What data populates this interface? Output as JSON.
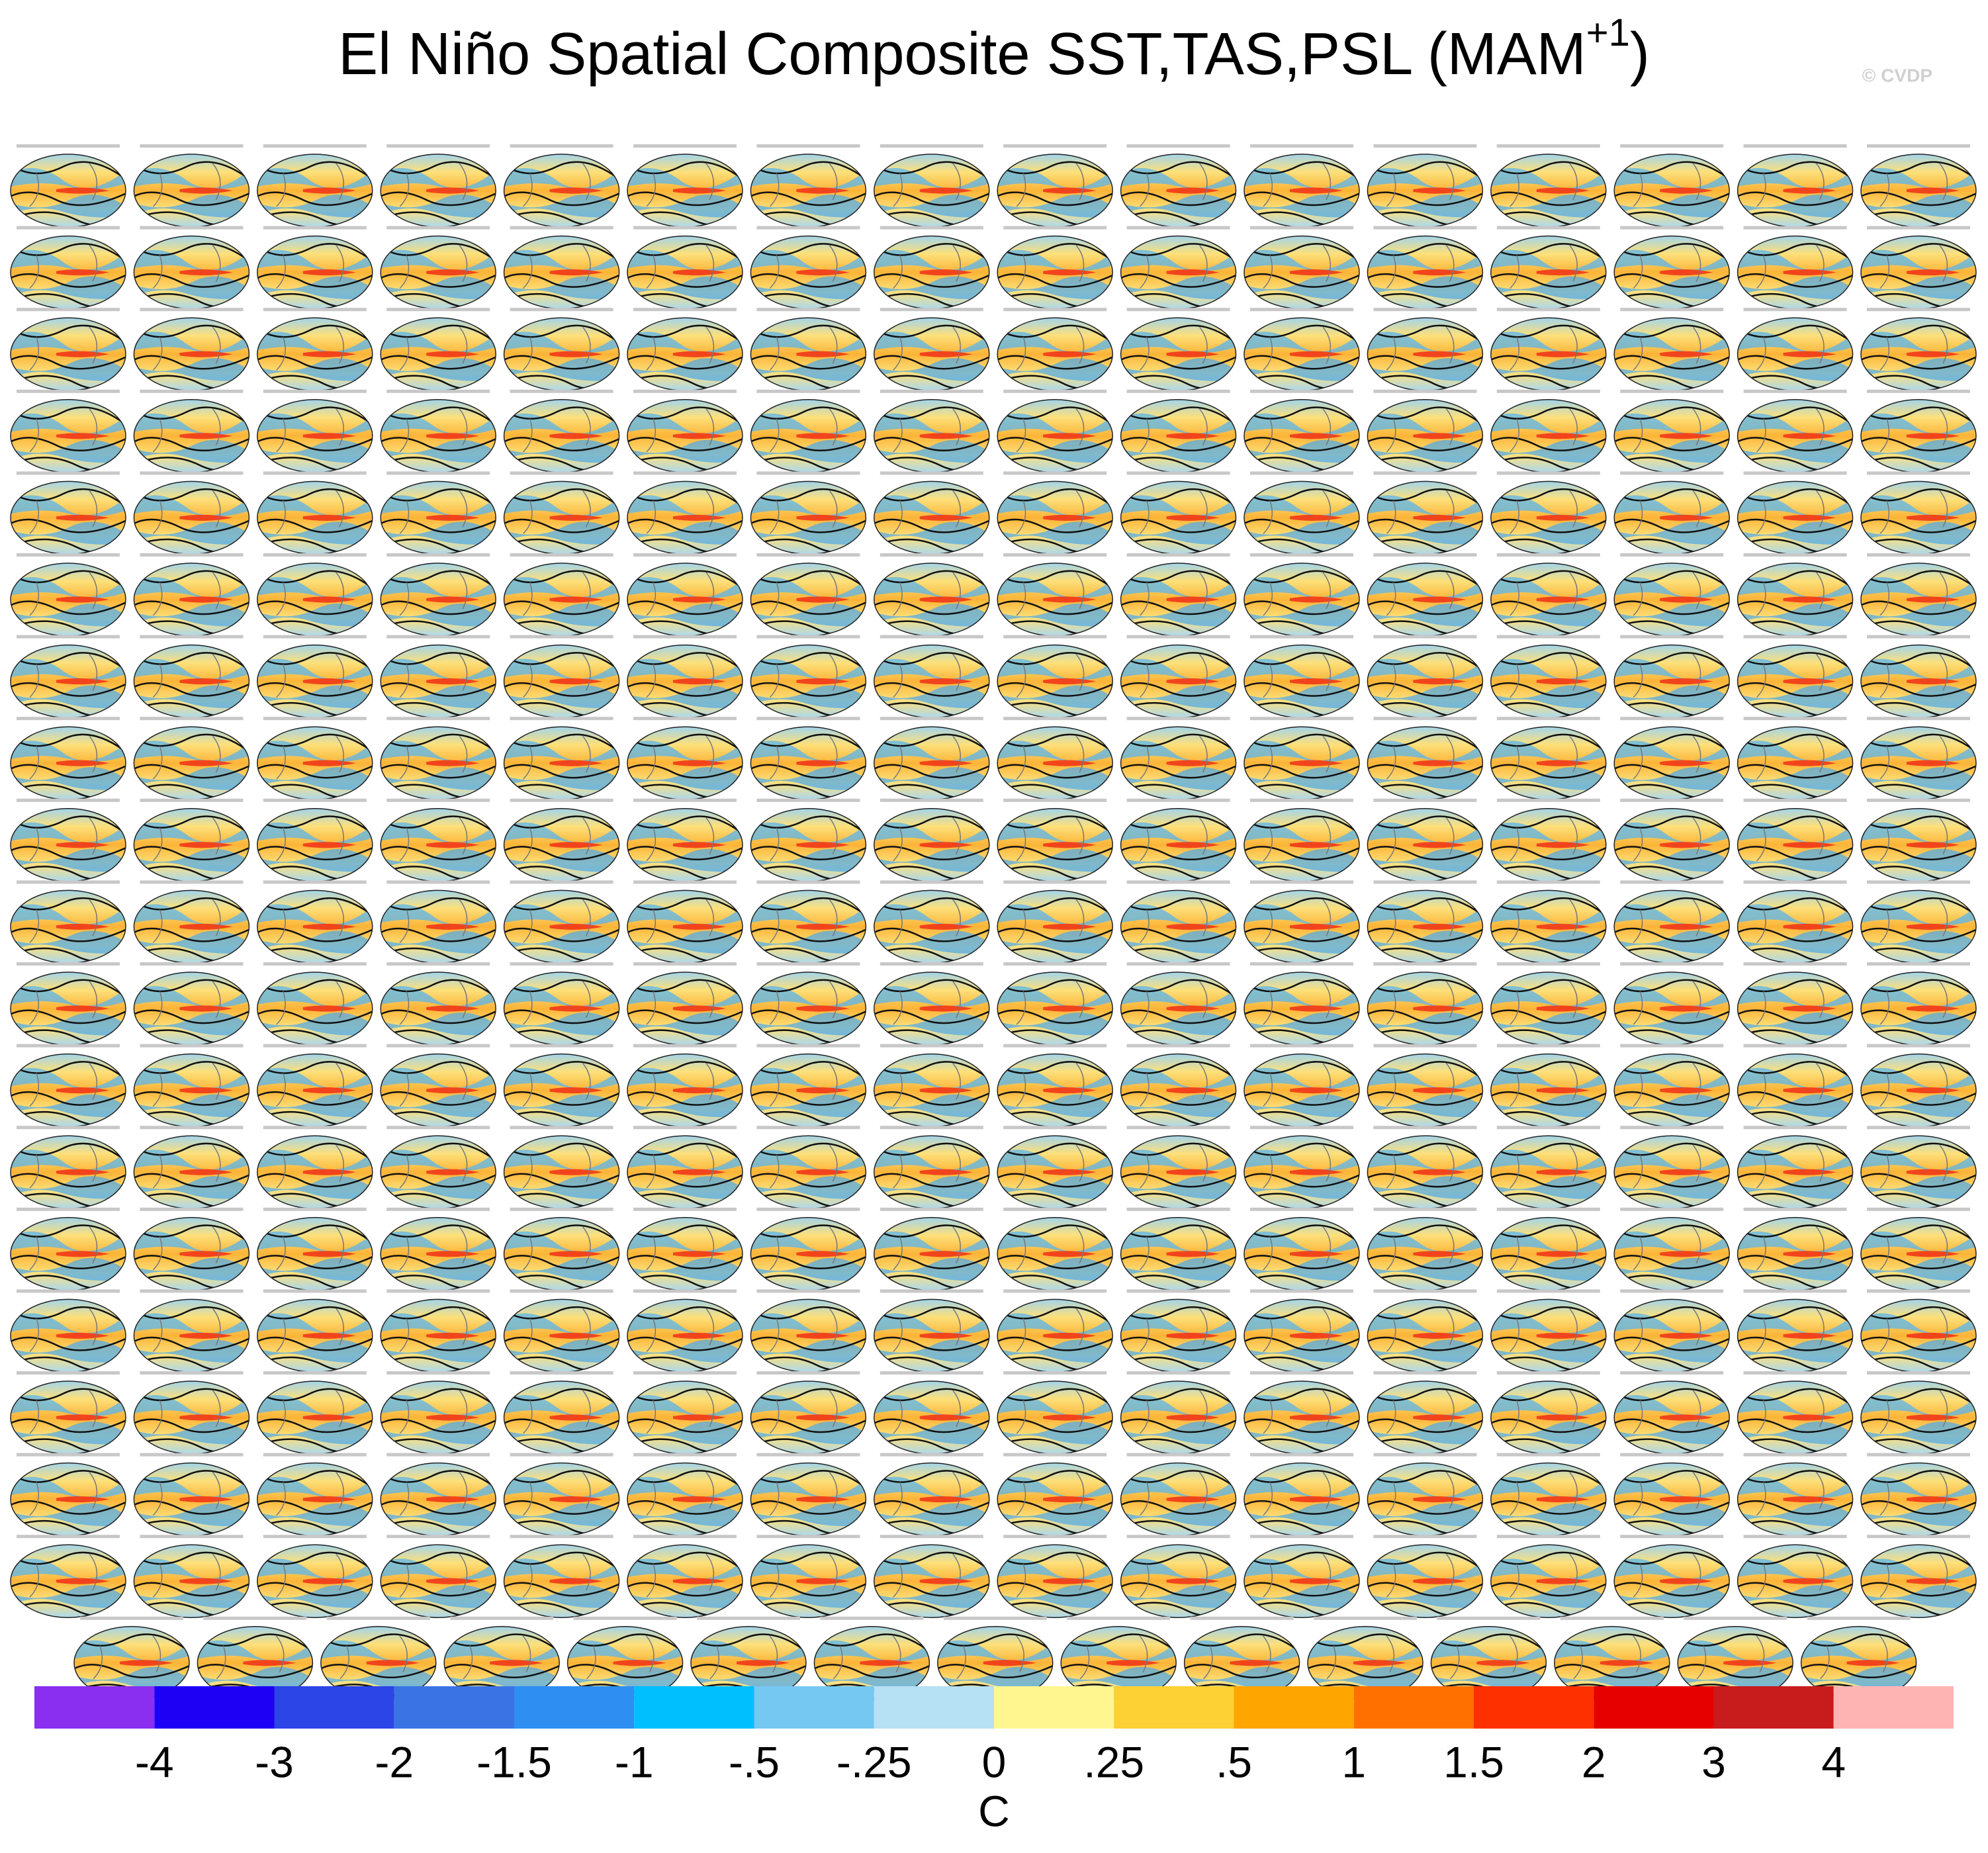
{
  "header": {
    "title": "El Niño Spatial Composite SST,TAS,PSL (MAM",
    "title_superscript": "+1",
    "title_close": ")",
    "copyright": "© CVDP"
  },
  "colorbar": {
    "colors": [
      "#8a2ef0",
      "#1e00f5",
      "#2b45e6",
      "#3a74e4",
      "#2e8ef2",
      "#00bfff",
      "#75c8f2",
      "#b6e0f3",
      "#fff690",
      "#fdd033",
      "#ffa500",
      "#ff7000",
      "#ff3000",
      "#e60000",
      "#c81c1c",
      "#ffb4b4"
    ],
    "ticks": [
      "-4",
      "-3",
      "-2",
      "-1.5",
      "-1",
      "-.5",
      "-.25",
      "0",
      ".25",
      ".5",
      "1",
      "1.5",
      "2",
      "3",
      "4"
    ],
    "unit": "C"
  }
}
